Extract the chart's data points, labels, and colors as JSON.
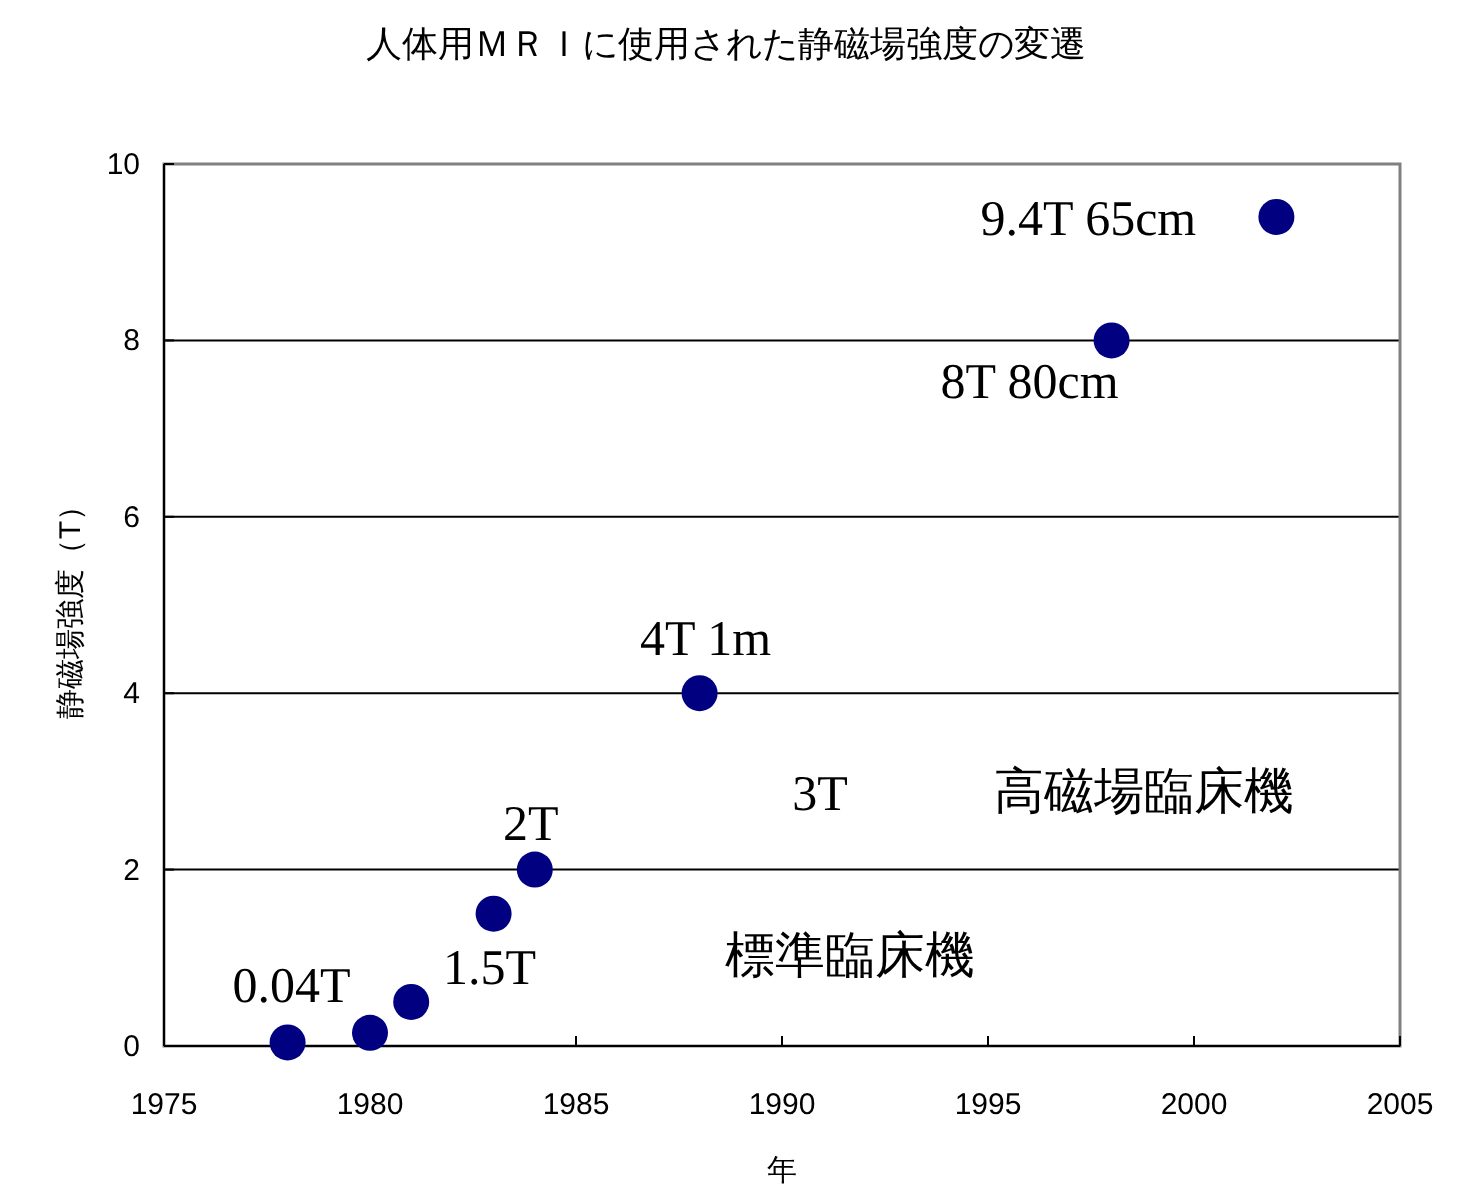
{
  "chart_data": {
    "type": "scatter",
    "title": "人体用ＭＲＩに使用された静磁場強度の変遷",
    "xlabel": "年",
    "ylabel": "静磁場強度（T）",
    "x": [
      1978,
      1980,
      1981,
      1983,
      1984,
      1988,
      1998,
      2002
    ],
    "series": [
      {
        "color": "#000080",
        "values": [
          0.04,
          0.15,
          0.5,
          1.5,
          2,
          4,
          8,
          9.4
        ]
      }
    ],
    "xlim": [
      1975,
      2005
    ],
    "xticks": [
      1975,
      1980,
      1985,
      1990,
      1995,
      2000,
      2005
    ],
    "ylim": [
      0,
      10
    ],
    "yticks": [
      0,
      2,
      4,
      6,
      8,
      10
    ],
    "grid": "y",
    "marker": "circle",
    "annotations": [
      {
        "text": "0.04T",
        "x": 1978,
        "y": 0.04
      },
      {
        "text": "1.5T",
        "x": 1983,
        "y": 1.5
      },
      {
        "text": "2T",
        "x": 1984,
        "y": 2
      },
      {
        "text": "4T 1m",
        "x": 1988,
        "y": 4
      },
      {
        "text": "8T 80cm",
        "x": 1998,
        "y": 8
      },
      {
        "text": "9.4T 65cm",
        "x": 2002,
        "y": 9.4
      },
      "3T",
      "高磁場臨床機",
      "標準臨床機"
    ]
  }
}
